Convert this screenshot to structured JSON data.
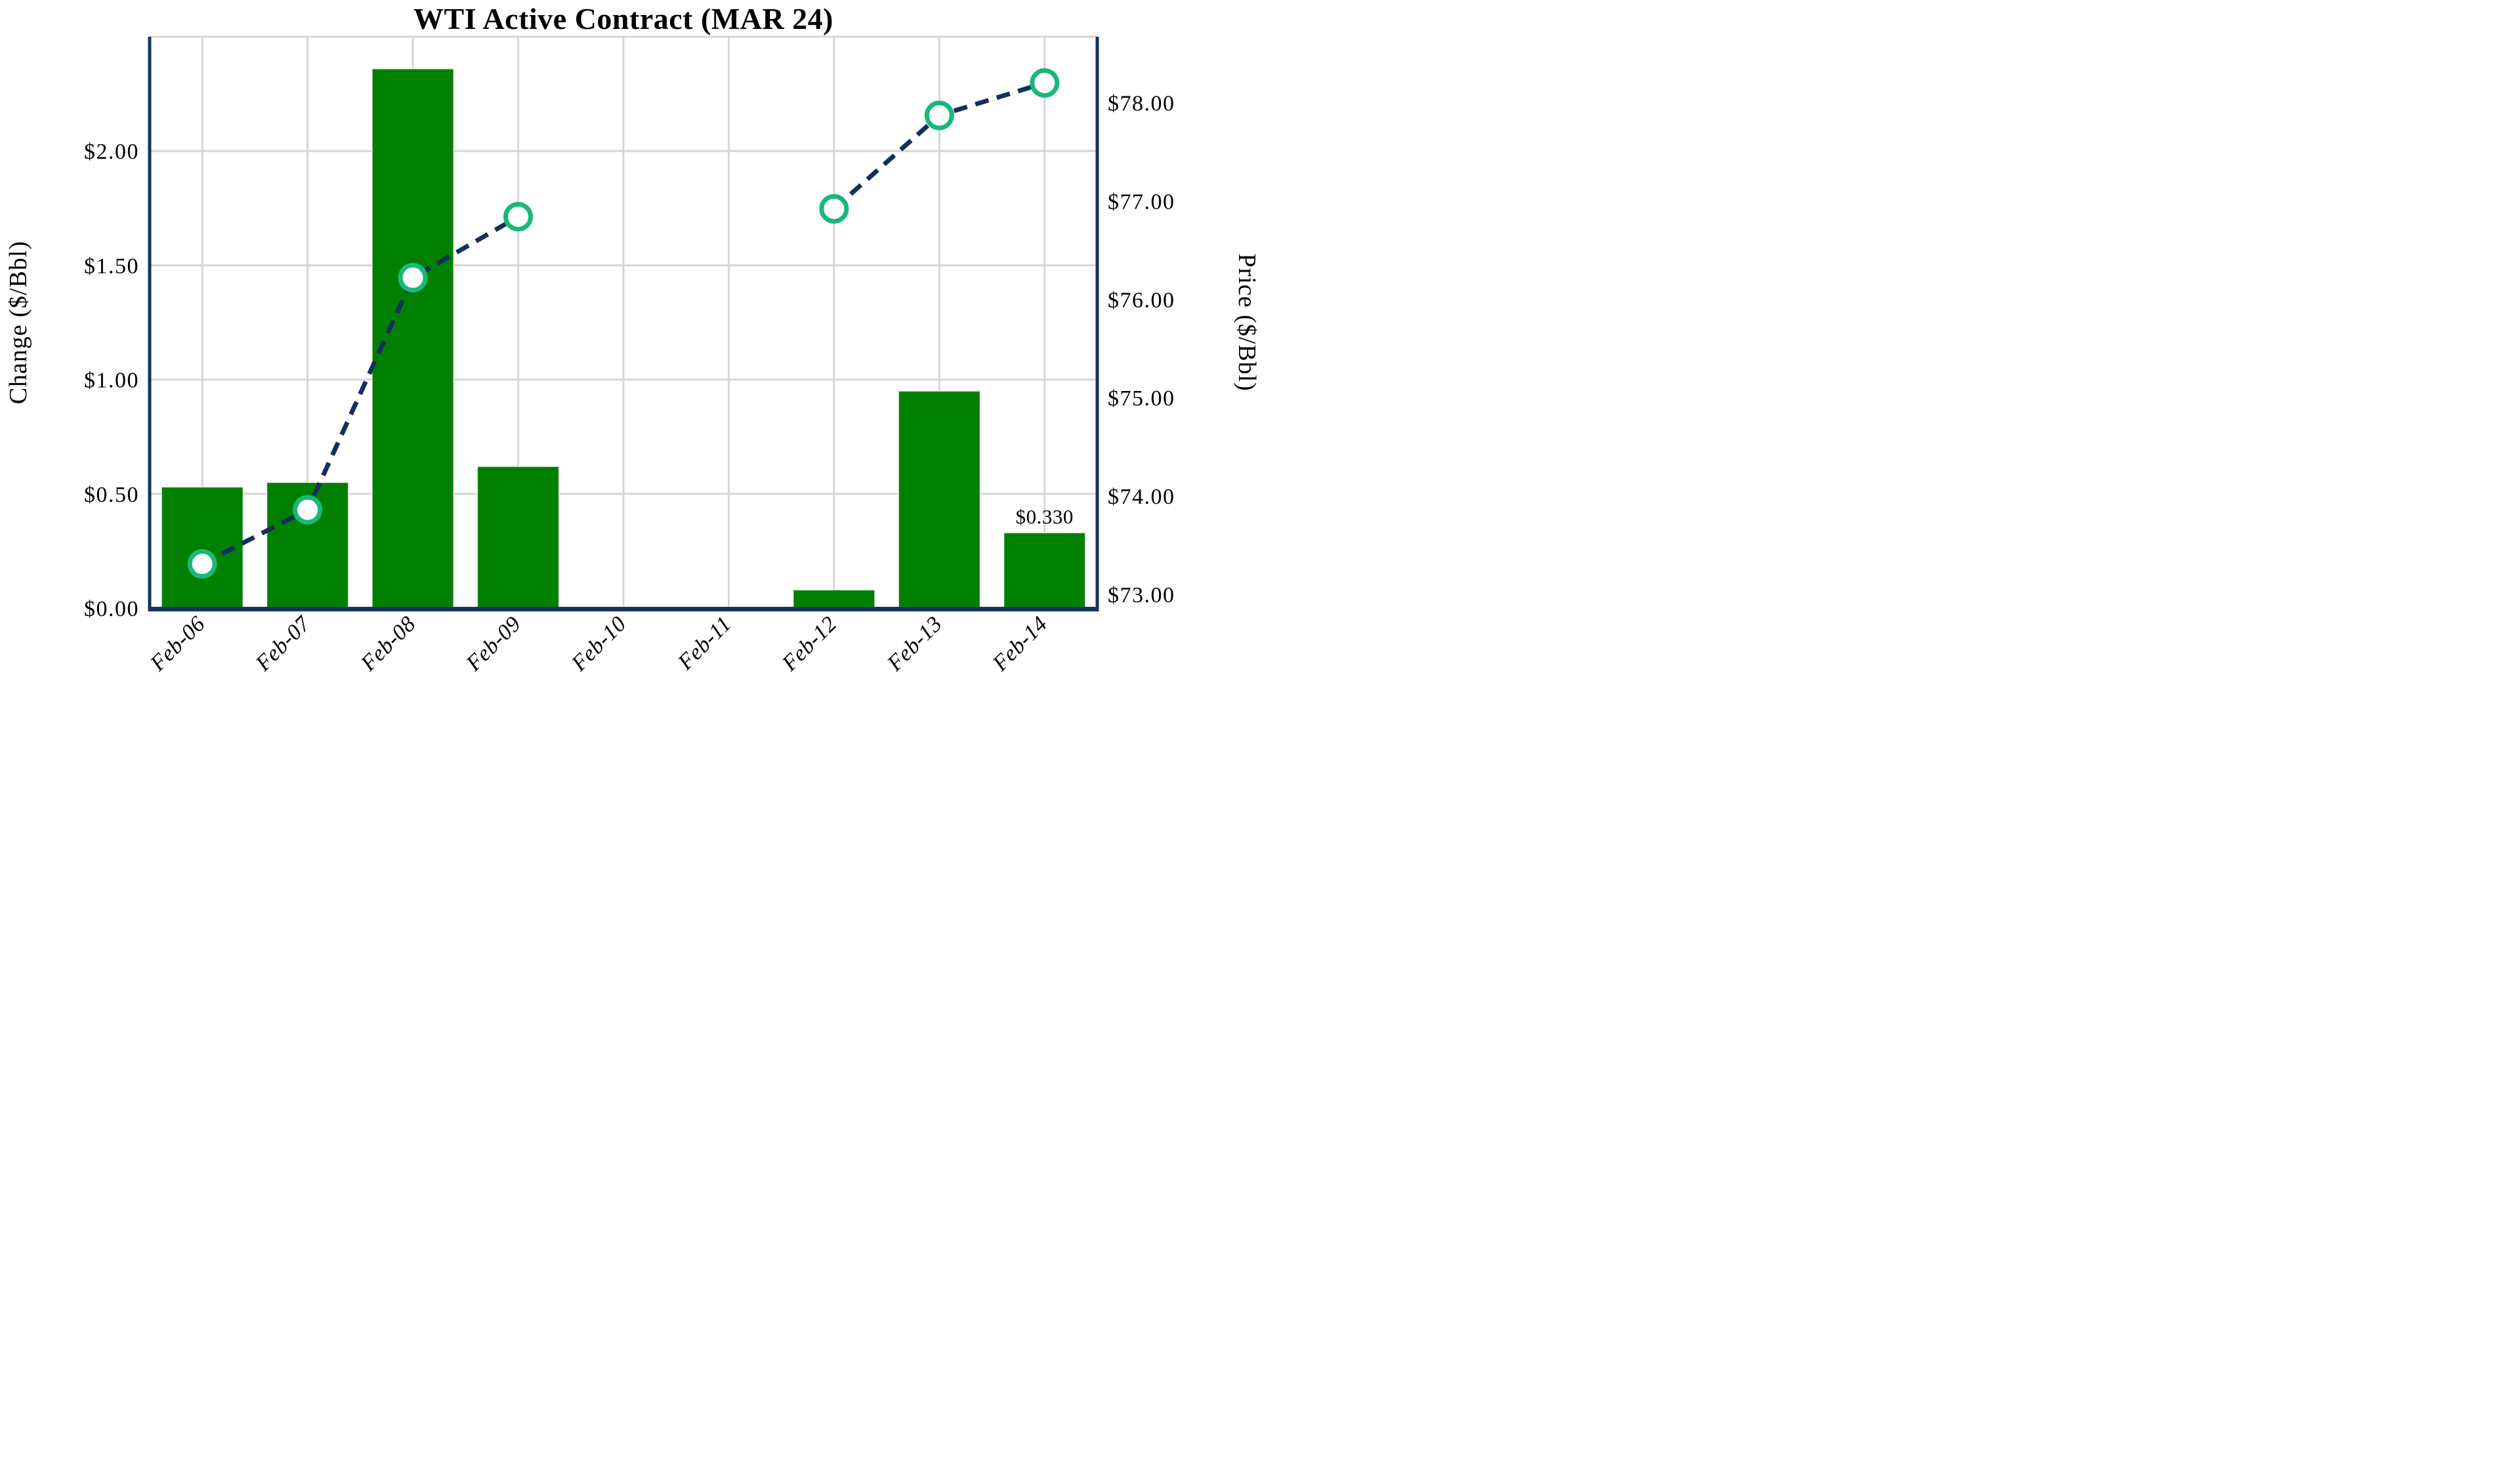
{
  "title": "WTI Active Contract (MAR 24)",
  "annotation": {
    "text": "$0.330",
    "category": "Feb-14",
    "series": "Change ($/Bbl)"
  },
  "colors": {
    "bar": "#008000",
    "bar_edge": "#e9e9e9",
    "line": "#14305a",
    "marker_ring": "#1ab878",
    "marker_fill": "#ffffff",
    "spine": "#17335f",
    "gridline": "#d6d6d6",
    "text": "#000000",
    "background": "#ffffff"
  },
  "chart_data": {
    "type": "combo",
    "categories": [
      "Feb-06",
      "Feb-07",
      "Feb-08",
      "Feb-09",
      "Feb-10",
      "Feb-11",
      "Feb-12",
      "Feb-13",
      "Feb-14"
    ],
    "series": [
      {
        "name": "Change ($/Bbl)",
        "type": "bar",
        "axis": "left",
        "values": [
          0.53,
          0.55,
          2.36,
          0.62,
          null,
          null,
          0.08,
          0.95,
          0.33
        ]
      },
      {
        "name": "Price ($/Bbl)",
        "type": "line",
        "style": "dashed",
        "marker": "circle-open",
        "axis": "right",
        "values": [
          73.31,
          73.86,
          76.22,
          76.84,
          null,
          null,
          76.92,
          77.87,
          78.2
        ]
      }
    ],
    "left_axis": {
      "label": "Change ($/Bbl)",
      "min": 0,
      "max": 2.5,
      "tick_step": 0.5,
      "ticks": [
        {
          "value": 0.0,
          "label": "$0.00"
        },
        {
          "value": 0.5,
          "label": "$0.50"
        },
        {
          "value": 1.0,
          "label": "$1.00"
        },
        {
          "value": 1.5,
          "label": "$1.50"
        },
        {
          "value": 2.0,
          "label": "$2.00"
        }
      ],
      "gridline_values": [
        0.5,
        1.0,
        1.5,
        2.0,
        2.5
      ]
    },
    "right_axis": {
      "label": "Price ($/Bbl)",
      "min": 72.86,
      "max": 78.67,
      "tick_step": 1.0,
      "ticks": [
        {
          "value": 73,
          "label": "$73.00"
        },
        {
          "value": 74,
          "label": "$74.00"
        },
        {
          "value": 75,
          "label": "$75.00"
        },
        {
          "value": 76,
          "label": "$76.00"
        },
        {
          "value": 77,
          "label": "$77.00"
        },
        {
          "value": 78,
          "label": "$78.00"
        }
      ]
    },
    "x_axis": {
      "tick_rotation_deg": -45
    },
    "grid": {
      "horizontal": true,
      "vertical": true
    },
    "legend_position": "none"
  }
}
